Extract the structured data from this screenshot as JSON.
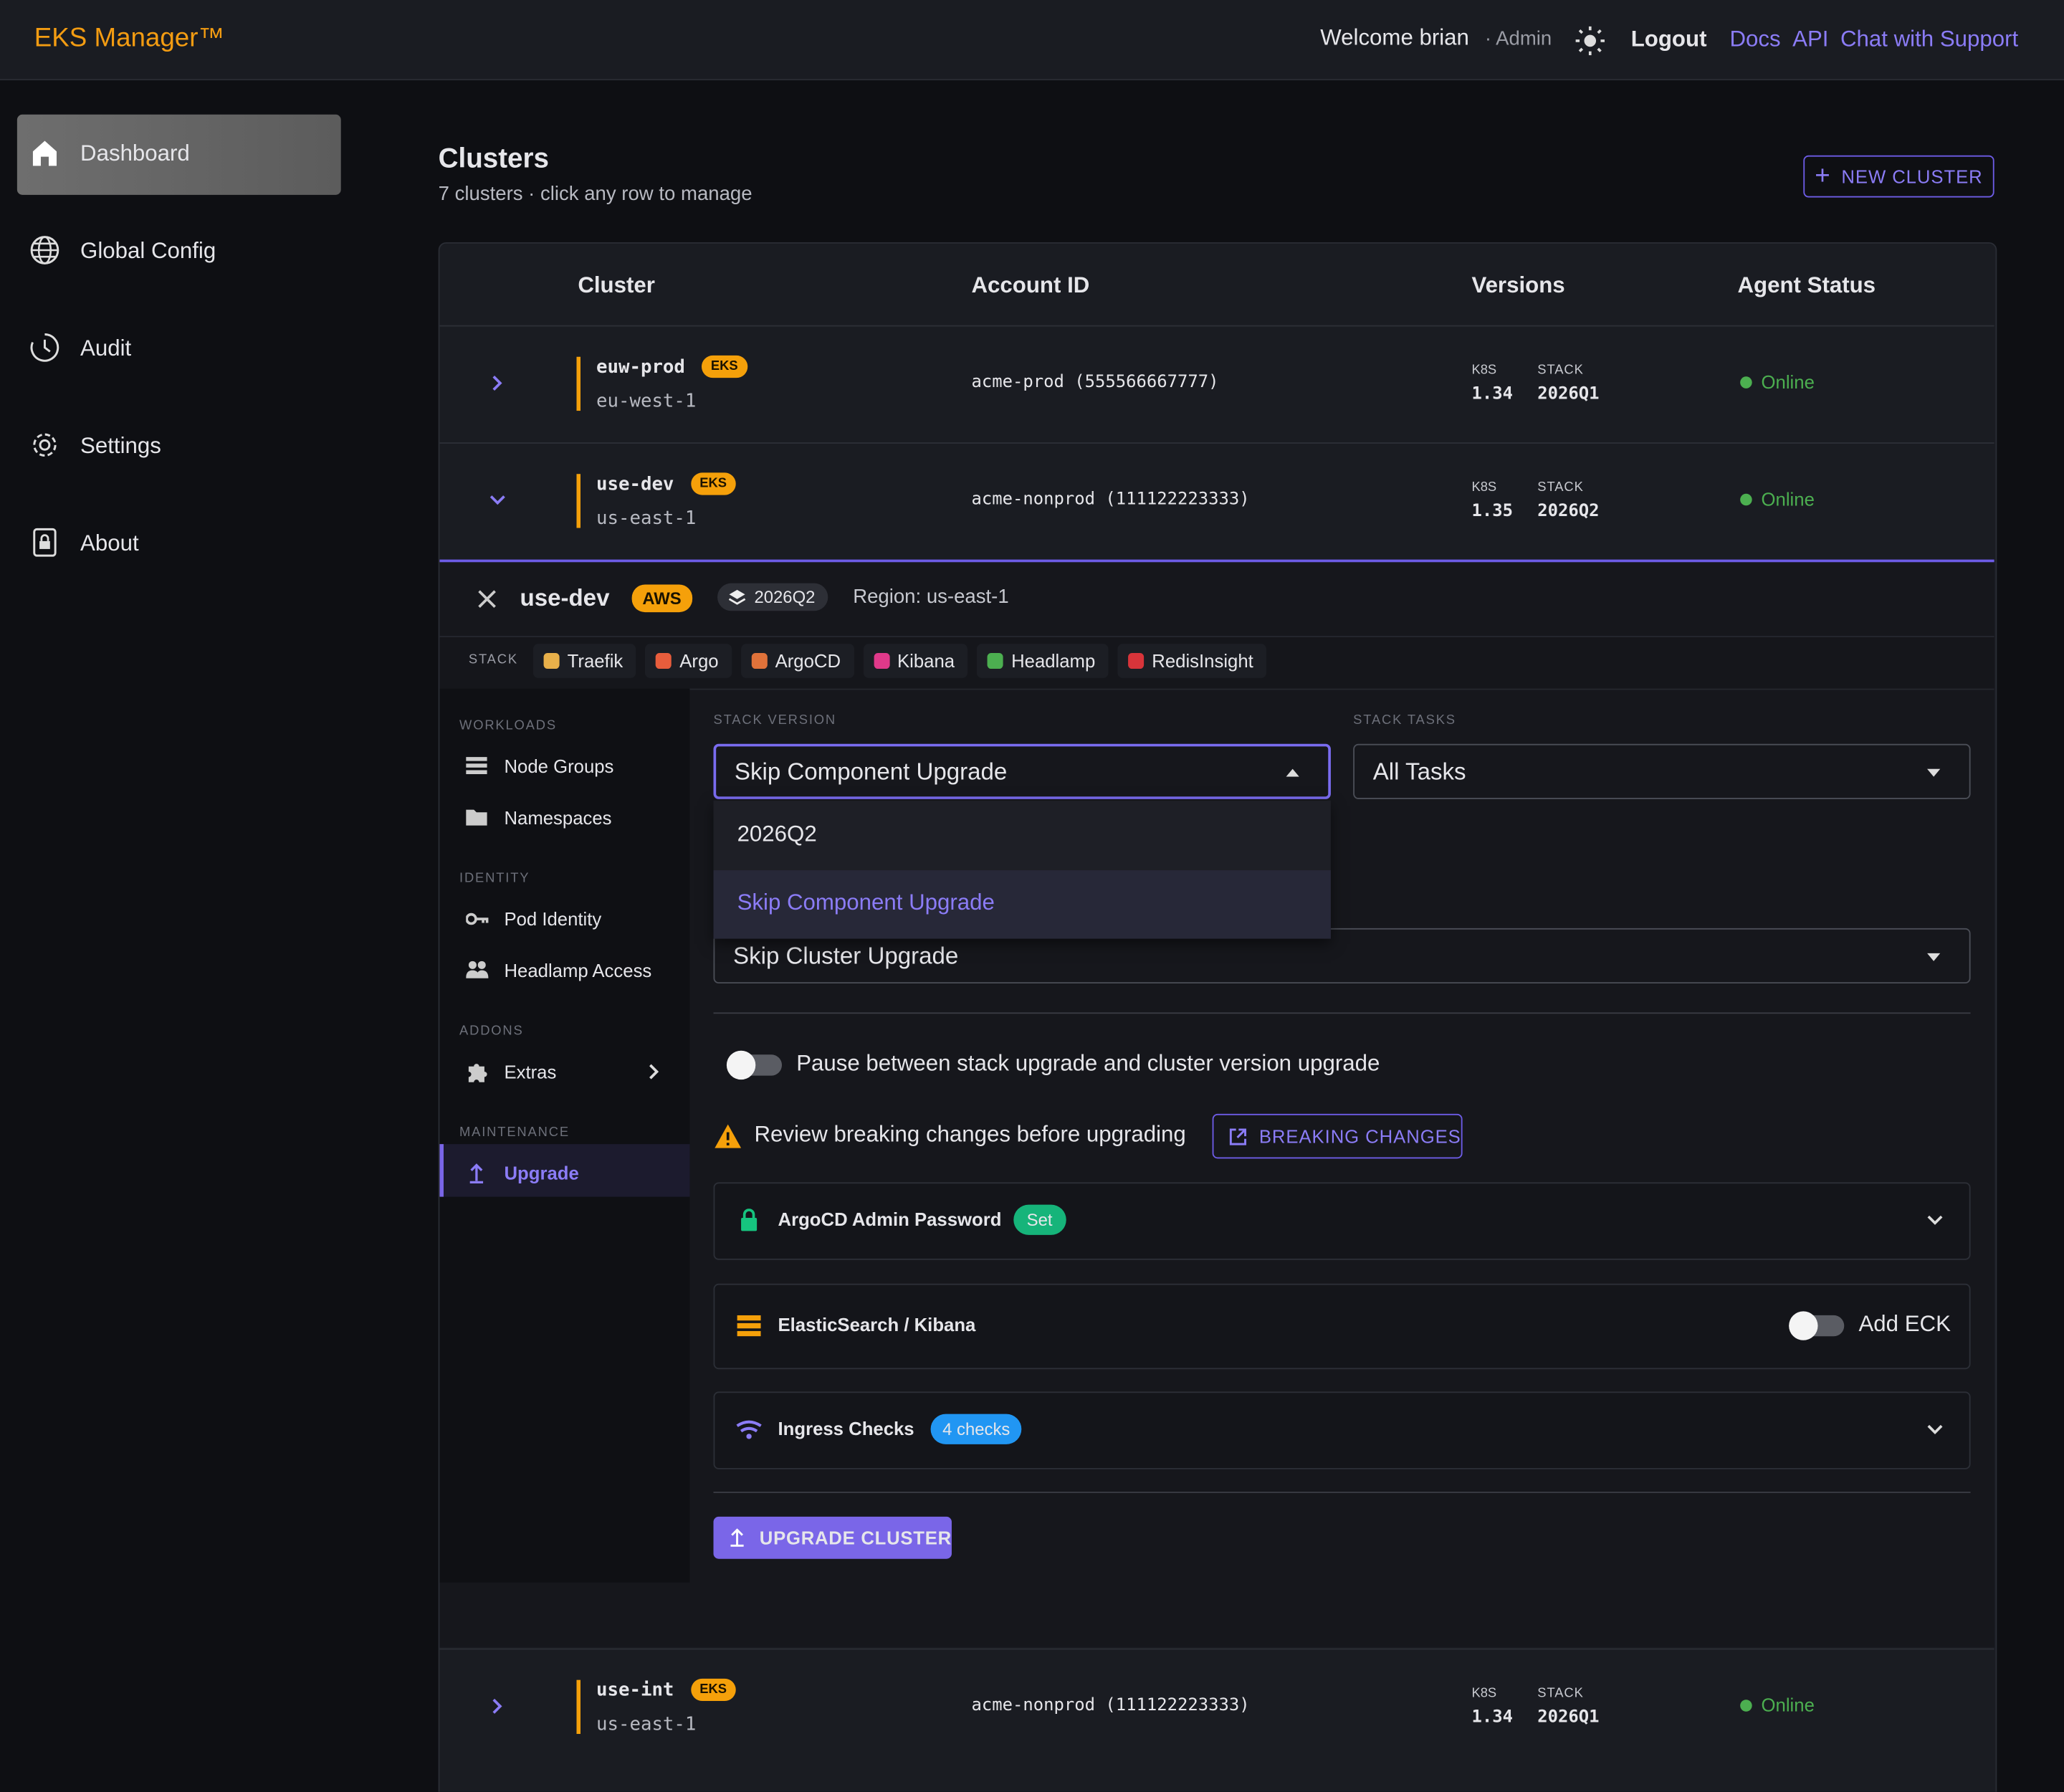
{
  "header": {
    "brand": "EKS Manager™",
    "welcome": "Welcome brian",
    "role": "· Admin",
    "logout": "Logout",
    "links": [
      "Docs",
      "API",
      "Chat with Support"
    ]
  },
  "sidebar": [
    "Dashboard",
    "Global Config",
    "Audit",
    "Settings",
    "About"
  ],
  "page": {
    "title": "Clusters",
    "subtitle": "7 clusters · click any row to manage",
    "new_button": "NEW CLUSTER"
  },
  "table": {
    "columns": [
      "Cluster",
      "Account ID",
      "Versions",
      "Agent Status"
    ],
    "rows": [
      {
        "name": "euw-prod",
        "badge": "EKS",
        "region": "eu-west-1",
        "account": "acme-prod (555566667777)",
        "k8s_label": "K8S",
        "k8s": "1.34",
        "stack_label": "STACK",
        "stack": "2026Q1",
        "status": "Online"
      },
      {
        "name": "use-dev",
        "badge": "EKS",
        "region": "us-east-1",
        "account": "acme-nonprod (111122223333)",
        "k8s_label": "K8S",
        "k8s": "1.35",
        "stack_label": "STACK",
        "stack": "2026Q2",
        "status": "Online"
      },
      {
        "name": "use-int",
        "badge": "EKS",
        "region": "us-east-1",
        "account": "acme-nonprod (111122223333)",
        "k8s_label": "K8S",
        "k8s": "1.34",
        "stack_label": "STACK",
        "stack": "2026Q1",
        "status": "Online"
      }
    ]
  },
  "detail": {
    "name": "use-dev",
    "badge": "AWS",
    "stack": "2026Q2",
    "region": "Region: us-east-1",
    "stack_label": "STACK",
    "components": [
      "Traefik",
      "Argo",
      "ArgoCD",
      "Kibana",
      "Headlamp",
      "RedisInsight"
    ],
    "nav": [
      {
        "heading": "WORKLOADS",
        "items": [
          "Node Groups",
          "Namespaces"
        ]
      },
      {
        "heading": "IDENTITY",
        "items": [
          "Pod Identity",
          "Headlamp Access"
        ]
      },
      {
        "heading": "ADDONS",
        "items": [
          "Extras"
        ]
      },
      {
        "heading": "MAINTENANCE",
        "items": [
          "Upgrade"
        ]
      }
    ],
    "form": {
      "stack_version_label": "STACK VERSION",
      "stack_version_value": "Skip Component Upgrade",
      "options": [
        "2026Q2",
        "Skip Component Upgrade"
      ],
      "stack_tasks_label": "STACK TASKS",
      "stack_tasks_value": "All Tasks",
      "cluster_value": "Skip Cluster Upgrade",
      "pause": "Pause between stack upgrade and cluster version upgrade",
      "warning": "Review breaking changes before upgrading",
      "breaking_button": "BREAKING CHANGES",
      "panels": [
        {
          "title": "ArgoCD Admin Password",
          "chip": "Set"
        },
        {
          "title": "ElasticSearch / Kibana",
          "toggle": "Add ECK"
        },
        {
          "title": "Ingress Checks",
          "chip": "4 checks"
        }
      ],
      "upgrade_button": "UPGRADE CLUSTER"
    }
  }
}
